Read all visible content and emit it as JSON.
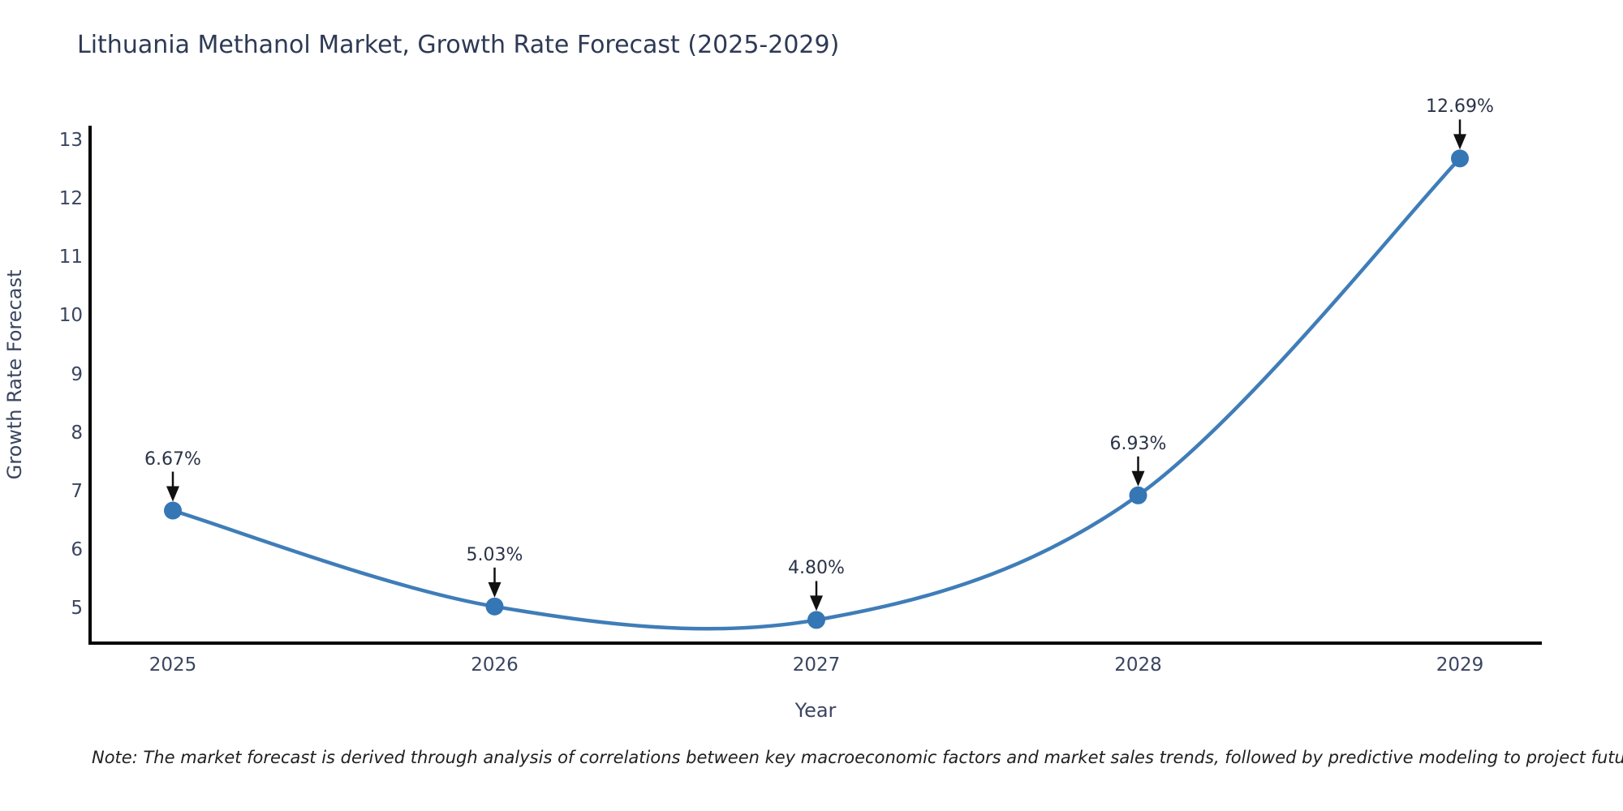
{
  "chart_data": {
    "type": "line",
    "line_shape": "spline",
    "title": "Lithuania Methanol Market, Growth Rate Forecast (2025-2029)",
    "xlabel": "Year",
    "ylabel": "Growth Rate Forecast",
    "x": [
      2025,
      2026,
      2027,
      2028,
      2029
    ],
    "values": [
      6.67,
      5.03,
      4.8,
      6.93,
      12.69
    ],
    "point_labels": [
      "6.67%",
      "5.03%",
      "4.80%",
      "6.93%",
      "12.69%"
    ],
    "yticks": [
      5,
      6,
      7,
      8,
      9,
      10,
      11,
      12,
      13
    ],
    "ylim": [
      4.4,
      13.25
    ],
    "grid": false,
    "legend": "none",
    "note": "Note: The market forecast is derived through analysis of correlations between key macroeconomic factors and market sales trends, followed by predictive modeling to project future sales.",
    "colors": {
      "line": "#3f7db8",
      "marker": "#3576b5",
      "arrow": "#111111",
      "axis": "#000000",
      "title_text": "#2e3a55",
      "tick_text": "#3a4560",
      "note_text": "#202020"
    }
  }
}
